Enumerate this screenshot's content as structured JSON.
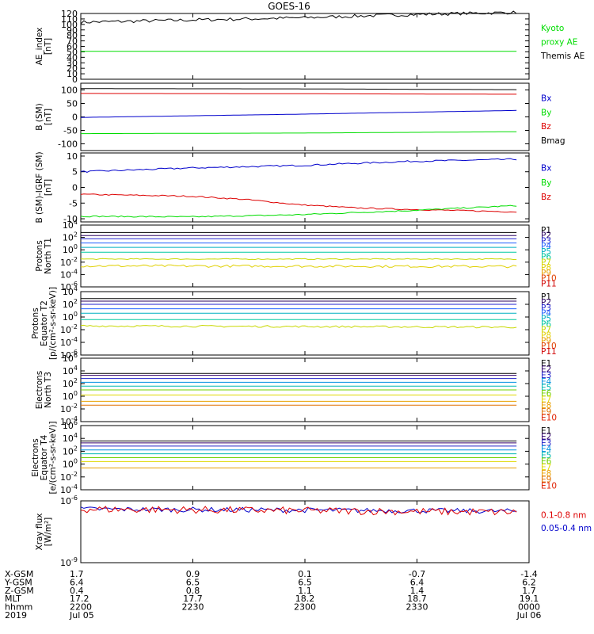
{
  "title": "GOES-16",
  "colors": {
    "black": "#000000",
    "green": "#00dd00",
    "blue": "#0000cc",
    "red": "#dd0000",
    "proton_channels": [
      "#000000",
      "#2b0060",
      "#2020d0",
      "#2060ff",
      "#00b0c0",
      "#00c8a0",
      "#c8d800",
      "#e0d000",
      "#e8a000",
      "#e04000",
      "#d00000"
    ],
    "electron_channels": [
      "#000000",
      "#30006a",
      "#2020c8",
      "#0090e0",
      "#00b8b0",
      "#70d000",
      "#e0d800",
      "#e8a000",
      "#e07000",
      "#e02000"
    ]
  },
  "chart_data": [
    {
      "type": "line",
      "name": "ae",
      "ylabel": "AE_index\n[nT]",
      "ylim": [
        0,
        120
      ],
      "yscale": "linear",
      "yticks": [
        "0",
        "10",
        "20",
        "30",
        "40",
        "50",
        "60",
        "70",
        "80",
        "90",
        "100",
        "110",
        "120"
      ],
      "legend": [
        {
          "text": "Kyoto",
          "color": "#00dd00"
        },
        {
          "text": "proxy AE",
          "color": "#00dd00"
        },
        {
          "text": "Themis AE",
          "color": "#000000"
        }
      ],
      "series": [
        {
          "color": "#000000",
          "x": [
            0,
            0.5,
            1,
            1.5,
            2
          ],
          "y": [
            104,
            108,
            112,
            118,
            122
          ],
          "noise": 3
        },
        {
          "color": "#00dd00",
          "x": [
            0,
            2
          ],
          "y": [
            51,
            51
          ]
        }
      ]
    },
    {
      "type": "line",
      "name": "bsm",
      "ylabel": "B (SM)\n[nT]",
      "ylim": [
        -125,
        125
      ],
      "yscale": "linear",
      "yticks": [
        "-100",
        "-50",
        "0",
        "50",
        "100"
      ],
      "legend": [
        {
          "text": "Bx",
          "color": "#0000cc"
        },
        {
          "text": "By",
          "color": "#00dd00"
        },
        {
          "text": "Bz",
          "color": "#dd0000"
        },
        {
          "text": "Bmag",
          "color": "#000000"
        }
      ],
      "series": [
        {
          "color": "#000000",
          "x": [
            0,
            1,
            2
          ],
          "y": [
            105,
            104,
            101
          ]
        },
        {
          "color": "#dd0000",
          "x": [
            0,
            1,
            2
          ],
          "y": [
            87,
            86,
            84
          ]
        },
        {
          "color": "#0000cc",
          "x": [
            0,
            0.5,
            1,
            1.5,
            2
          ],
          "y": [
            -2,
            4,
            10,
            17,
            24
          ]
        },
        {
          "color": "#00dd00",
          "x": [
            0,
            1,
            2
          ],
          "y": [
            -62,
            -60,
            -55
          ]
        }
      ]
    },
    {
      "type": "line",
      "name": "bigrf",
      "ylabel": "B (SM)-IGRF (SM)\n[nT]",
      "ylim": [
        -11,
        11
      ],
      "yscale": "linear",
      "yticks": [
        "-10",
        "-5",
        "0",
        "5",
        "10"
      ],
      "legend": [
        {
          "text": "Bx",
          "color": "#0000cc"
        },
        {
          "text": "By",
          "color": "#00dd00"
        },
        {
          "text": "Bz",
          "color": "#dd0000"
        }
      ],
      "series": [
        {
          "color": "#0000cc",
          "x": [
            0,
            0.5,
            1,
            1.5,
            2
          ],
          "y": [
            5,
            6.2,
            7,
            8.3,
            9
          ],
          "noise": 0.25
        },
        {
          "color": "#dd0000",
          "x": [
            0,
            0.5,
            0.75,
            1,
            1.25,
            1.5,
            2
          ],
          "y": [
            -2.2,
            -2.8,
            -3.8,
            -5.5,
            -6.5,
            -7,
            -7.8
          ],
          "noise": 0.2
        },
        {
          "color": "#00dd00",
          "x": [
            0,
            0.5,
            1,
            1.5,
            2
          ],
          "y": [
            -9.2,
            -9.4,
            -8.7,
            -7.4,
            -5.8
          ],
          "noise": 0.2
        }
      ]
    },
    {
      "type": "line",
      "name": "p_north",
      "ylabel": "Protons\nNorth T1",
      "ylim": [
        -6,
        4
      ],
      "yscale": "log",
      "yticks": [
        "10^-6",
        "10^-4",
        "10^-2",
        "10^0",
        "10^2",
        "10^4"
      ],
      "legend": [
        {
          "text": "P1"
        },
        {
          "text": "P2"
        },
        {
          "text": "P3"
        },
        {
          "text": "P4"
        },
        {
          "text": "P5"
        },
        {
          "text": "P6"
        },
        {
          "text": "P7"
        },
        {
          "text": "P8"
        },
        {
          "text": "P9"
        },
        {
          "text": "P10"
        },
        {
          "text": "P11"
        }
      ],
      "series": [
        {
          "y": [
            2.8,
            2.8
          ]
        },
        {
          "y": [
            2.3,
            2.3
          ]
        },
        {
          "y": [
            1.8,
            1.8
          ]
        },
        {
          "y": [
            1.1,
            1.1
          ]
        },
        {
          "y": [
            0.4,
            0.4
          ]
        },
        {
          "y": [
            -0.4,
            -0.4
          ]
        },
        {
          "y": [
            -1.5,
            -1.5
          ],
          "noise": 0.08
        },
        {
          "y": [
            -2.6,
            -2.7
          ],
          "noise": 0.2
        }
      ]
    },
    {
      "type": "line",
      "name": "p_equator",
      "ylabel": "Protons\nEquator T2\n[p/(cm²-s-sr-keV)]",
      "ylim": [
        -6,
        4
      ],
      "yscale": "log",
      "yticks": [
        "10^-6",
        "10^-4",
        "10^-2",
        "10^0",
        "10^2",
        "10^4"
      ],
      "legend": [
        {
          "text": "P1"
        },
        {
          "text": "P2"
        },
        {
          "text": "P3"
        },
        {
          "text": "P4"
        },
        {
          "text": "P5"
        },
        {
          "text": "P6"
        },
        {
          "text": "P7"
        },
        {
          "text": "P8"
        },
        {
          "text": "P9"
        },
        {
          "text": "P10"
        },
        {
          "text": "P11"
        }
      ],
      "series": [
        {
          "y": [
            2.9,
            2.9
          ]
        },
        {
          "y": [
            2.5,
            2.5
          ]
        },
        {
          "y": [
            2.0,
            2.0
          ]
        },
        {
          "y": [
            1.3,
            1.3
          ]
        },
        {
          "y": [
            0.6,
            0.6
          ]
        },
        {
          "y": [
            -0.4,
            -0.4
          ]
        },
        {
          "y": [
            -1.4,
            -1.6
          ],
          "noise": 0.15
        }
      ]
    },
    {
      "type": "line",
      "name": "e_north",
      "ylabel": "Electrons\nNorth T3",
      "ylim": [
        -4,
        6
      ],
      "yscale": "log",
      "yticks": [
        "10^-4",
        "10^-2",
        "10^0",
        "10^2",
        "10^4",
        "10^6"
      ],
      "legend": [
        {
          "text": "E1"
        },
        {
          "text": "E2"
        },
        {
          "text": "E3"
        },
        {
          "text": "E4"
        },
        {
          "text": "E5"
        },
        {
          "text": "E6"
        },
        {
          "text": "E7"
        },
        {
          "text": "E8"
        },
        {
          "text": "E9"
        },
        {
          "text": "E10"
        }
      ],
      "series": [
        {
          "y": [
            3.6,
            3.6
          ]
        },
        {
          "y": [
            3.3,
            3.3
          ]
        },
        {
          "y": [
            2.8,
            2.8
          ]
        },
        {
          "y": [
            2.2,
            2.2
          ]
        },
        {
          "y": [
            1.6,
            1.6
          ]
        },
        {
          "y": [
            1.0,
            1.0
          ]
        },
        {
          "y": [
            0.2,
            0.2
          ]
        },
        {
          "y": [
            -0.8,
            -0.8
          ]
        },
        {
          "y": [
            -1.4,
            -1.4
          ]
        }
      ]
    },
    {
      "type": "line",
      "name": "e_equator",
      "ylabel": "Electrons\nEquator T4\n[e/(cm²-s-sr-keV)]",
      "ylim": [
        -4,
        6
      ],
      "yscale": "log",
      "yticks": [
        "10^-4",
        "10^-2",
        "10^0",
        "10^2",
        "10^4",
        "10^6"
      ],
      "legend": [
        {
          "text": "E1"
        },
        {
          "text": "E2"
        },
        {
          "text": "E3"
        },
        {
          "text": "E4"
        },
        {
          "text": "E5"
        },
        {
          "text": "E6"
        },
        {
          "text": "E7"
        },
        {
          "text": "E8"
        },
        {
          "text": "E9"
        },
        {
          "text": "E10"
        }
      ],
      "series": [
        {
          "y": [
            3.6,
            3.6
          ]
        },
        {
          "y": [
            3.3,
            3.3
          ]
        },
        {
          "y": [
            2.8,
            2.8
          ]
        },
        {
          "y": [
            2.2,
            2.2
          ]
        },
        {
          "y": [
            1.6,
            1.6
          ]
        },
        {
          "y": [
            1.0,
            1.0
          ]
        },
        {
          "y": [
            0.4,
            0.4
          ]
        },
        {
          "y": [
            -0.6,
            -0.6
          ]
        }
      ]
    },
    {
      "type": "line",
      "name": "xray",
      "ylabel": "Xray flux\n[W/m²]",
      "ylim": [
        -9,
        -6
      ],
      "yscale": "log",
      "yticks": [
        "10^-9",
        "10^-6"
      ],
      "legend": [
        {
          "text": "0.1-0.8 nm",
          "color": "#dd0000"
        },
        {
          "text": "0.05-0.4 nm",
          "color": "#0000cc"
        }
      ],
      "series": [
        {
          "color": "#0000cc",
          "y": [
            -6.4,
            -6.5
          ],
          "noise": 0.12
        },
        {
          "color": "#dd0000",
          "y": [
            -6.4,
            -6.55
          ],
          "noise": 0.18
        }
      ]
    }
  ],
  "ephemeris": {
    "row_labels": [
      "X-GSM",
      "Y-GSM",
      "Z-GSM",
      "MLT",
      "hhmm",
      "2019"
    ],
    "columns": [
      {
        "values": [
          "1.7",
          "6.4",
          "0.4",
          "17.2",
          "2200",
          "Jul 05"
        ]
      },
      {
        "values": [
          "0.9",
          "6.5",
          "0.8",
          "17.7",
          "2230",
          ""
        ]
      },
      {
        "values": [
          "0.1",
          "6.5",
          "1.1",
          "18.2",
          "2300",
          ""
        ]
      },
      {
        "values": [
          "-0.7",
          "6.4",
          "1.4",
          "18.7",
          "2330",
          ""
        ]
      },
      {
        "values": [
          "-1.4",
          "6.2",
          "1.7",
          "19.1",
          "0000",
          "Jul 06"
        ]
      }
    ]
  }
}
